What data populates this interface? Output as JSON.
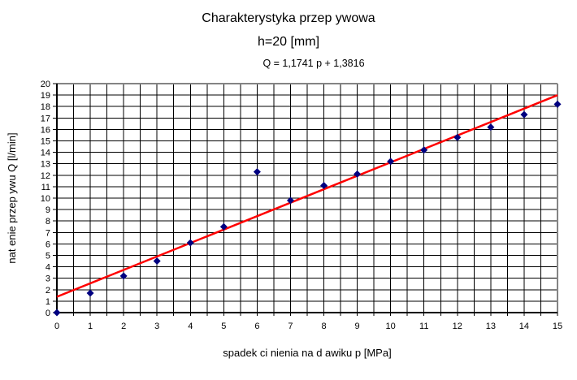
{
  "chart_data": {
    "type": "scatter",
    "title": "Charakterystyka przep ywowa",
    "subtitle": "h=20 [mm]",
    "equation": "Q = 1,1741 p + 1,3816",
    "xlabel": "spadek ci nienia na d awiku p [MPa]",
    "ylabel": "nat enie przep ywu Q [l/min]",
    "xlim": [
      0,
      15
    ],
    "ylim": [
      0,
      20
    ],
    "x_ticks": [
      0,
      1,
      2,
      3,
      4,
      5,
      6,
      7,
      8,
      9,
      10,
      11,
      12,
      13,
      14,
      15
    ],
    "y_ticks": [
      0,
      1,
      2,
      3,
      4,
      5,
      6,
      7,
      8,
      9,
      10,
      11,
      12,
      13,
      14,
      15,
      16,
      17,
      18,
      19,
      20
    ],
    "x_grid_step": 0.5,
    "y_grid_step": 1,
    "grid": true,
    "legend": false,
    "x": [
      0,
      1,
      2,
      3,
      4,
      5,
      6,
      7,
      8,
      9,
      10,
      11,
      12,
      13,
      14,
      15
    ],
    "y": [
      0,
      1.7,
      3.2,
      4.5,
      6.1,
      7.5,
      12.3,
      9.8,
      11.1,
      12.1,
      13.2,
      14.2,
      15.3,
      16.2,
      17.3,
      18.2
    ],
    "trendline": {
      "slope": 1.1741,
      "intercept": 1.3816
    },
    "marker": {
      "shape": "diamond",
      "size": 4.5
    },
    "colors": {
      "marker": "#000080",
      "trendline": "#ff0000",
      "grid": "#000000",
      "axis": "#000000",
      "plot_border": "#848484",
      "background": "#ffffff",
      "text": "#000000"
    }
  }
}
